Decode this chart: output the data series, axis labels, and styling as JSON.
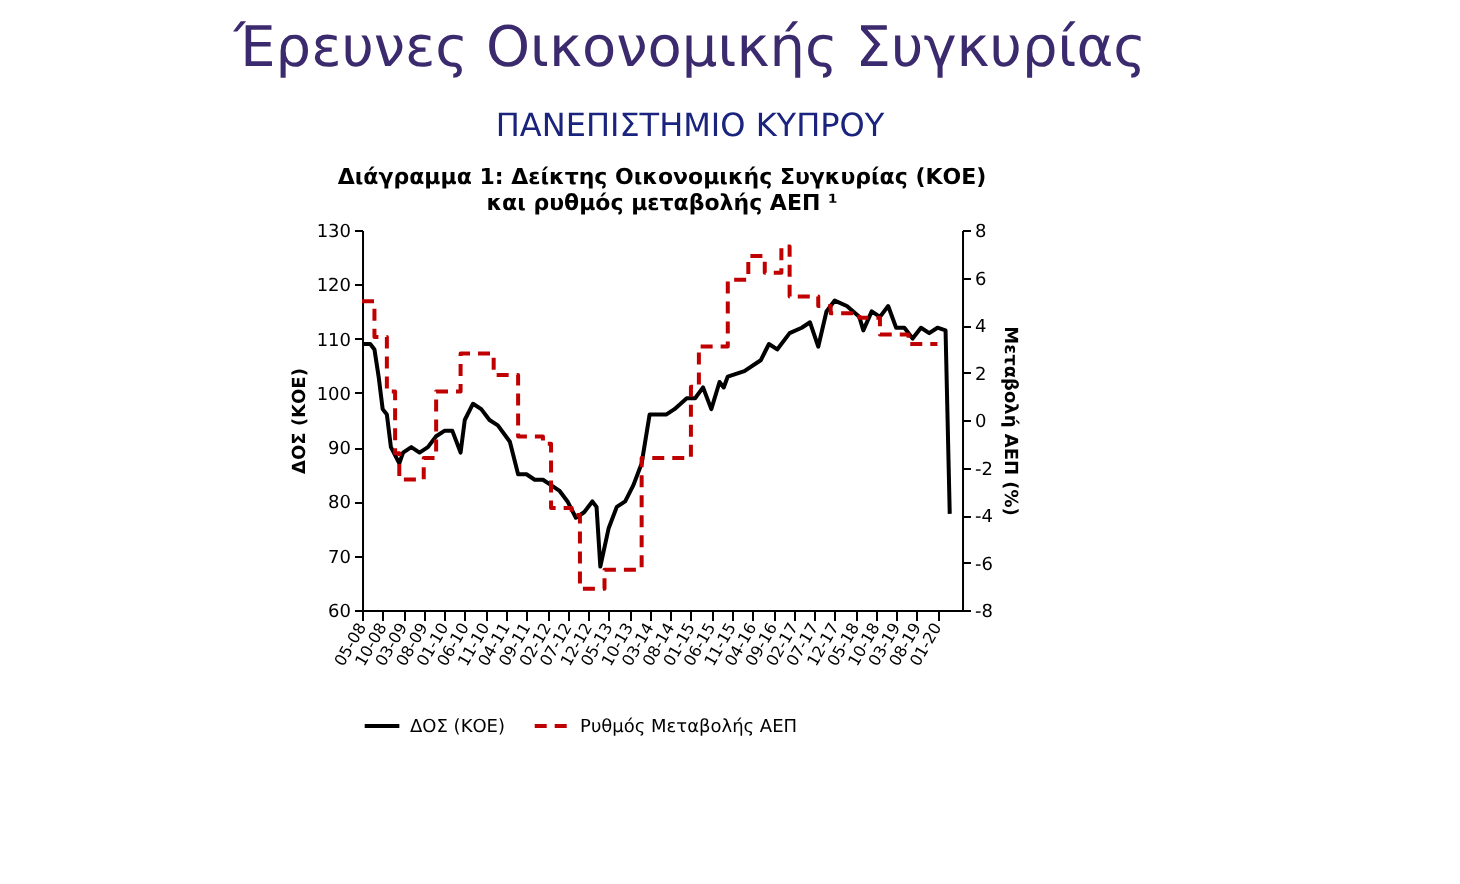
{
  "chart_data": {
    "type": "line",
    "title": [
      "Διάγραμμα 1: Δείκτης Οικονομικής Συγκυρίας (ΚΟΕ)",
      "και ρυθμός μεταβολής ΑΕΠ ¹"
    ],
    "annotations": [
      "Έρευνες Οικονομικής Συγκυρίας",
      "ΠΑΝΕΠΙΣΤΗΜΙΟ ΚΥΠΡΟΥ"
    ],
    "ylabel": "ΔΟΣ (ΚΟΕ)",
    "y2label": "Μεταβολή ΑΕΠ (%)",
    "xlim": [
      "2008-05",
      "2020-07"
    ],
    "xticks": [
      {
        "value": "2008-05",
        "label": "05-08"
      },
      {
        "value": "2008-10",
        "label": "10-08"
      },
      {
        "value": "2009-03",
        "label": "03-09"
      },
      {
        "value": "2009-08",
        "label": "08-09"
      },
      {
        "value": "2010-01",
        "label": "01-10"
      },
      {
        "value": "2010-06",
        "label": "06-10"
      },
      {
        "value": "2010-11",
        "label": "11-10"
      },
      {
        "value": "2011-04",
        "label": "04-11"
      },
      {
        "value": "2011-09",
        "label": "09-11"
      },
      {
        "value": "2012-02",
        "label": "02-12"
      },
      {
        "value": "2012-07",
        "label": "07-12"
      },
      {
        "value": "2012-12",
        "label": "12-12"
      },
      {
        "value": "2013-05",
        "label": "05-13"
      },
      {
        "value": "2013-10",
        "label": "10-13"
      },
      {
        "value": "2014-03",
        "label": "03-14"
      },
      {
        "value": "2014-08",
        "label": "08-14"
      },
      {
        "value": "2015-01",
        "label": "01-15"
      },
      {
        "value": "2015-06",
        "label": "06-15"
      },
      {
        "value": "2015-11",
        "label": "11-15"
      },
      {
        "value": "2016-04",
        "label": "04-16"
      },
      {
        "value": "2016-09",
        "label": "09-16"
      },
      {
        "value": "2017-02",
        "label": "02-17"
      },
      {
        "value": "2017-07",
        "label": "07-17"
      },
      {
        "value": "2017-12",
        "label": "12-17"
      },
      {
        "value": "2018-05",
        "label": "05-18"
      },
      {
        "value": "2018-10",
        "label": "10-18"
      },
      {
        "value": "2019-03",
        "label": "03-19"
      },
      {
        "value": "2019-08",
        "label": "08-19"
      },
      {
        "value": "2020-01",
        "label": "01-20"
      }
    ],
    "ylim": [
      60,
      130
    ],
    "yticks": [
      60,
      70,
      80,
      90,
      100,
      110,
      120,
      130
    ],
    "y2lim": [
      -8,
      8
    ],
    "y2ticks": [
      -8,
      -6,
      -4,
      -2,
      0,
      2,
      4,
      6,
      8
    ],
    "grid": false,
    "legend": "bottom",
    "marker": "none",
    "series": [
      {
        "name": "ΔΟΣ (ΚΟΕ)",
        "color": "#000000",
        "line_style": "solid",
        "x": [
          "2008-05",
          "2008-07",
          "2008-08",
          "2008-09",
          "2008-10",
          "2008-11",
          "2008-12",
          "2009-02",
          "2009-03",
          "2009-05",
          "2009-07",
          "2009-09",
          "2009-11",
          "2010-01",
          "2010-03",
          "2010-05",
          "2010-06",
          "2010-08",
          "2010-10",
          "2010-12",
          "2011-02",
          "2011-05",
          "2011-07",
          "2011-09",
          "2011-11",
          "2012-01",
          "2012-03",
          "2012-05",
          "2012-07",
          "2012-09",
          "2012-11",
          "2013-01",
          "2013-02",
          "2013-03",
          "2013-05",
          "2013-07",
          "2013-09",
          "2013-11",
          "2014-01",
          "2014-03",
          "2014-05",
          "2014-07",
          "2014-09",
          "2014-12",
          "2015-02",
          "2015-04",
          "2015-06",
          "2015-08",
          "2015-09",
          "2015-10",
          "2016-02",
          "2016-06",
          "2016-08",
          "2016-10",
          "2017-01",
          "2017-04",
          "2017-06",
          "2017-08",
          "2017-10",
          "2017-12",
          "2018-03",
          "2018-06",
          "2018-07",
          "2018-09",
          "2018-11",
          "2019-01",
          "2019-03",
          "2019-05",
          "2019-07",
          "2019-09",
          "2019-11",
          "2020-01",
          "2020-03",
          "2020-04"
        ],
        "values": [
          109,
          109,
          108,
          103,
          97,
          96,
          90,
          87,
          89,
          90,
          89,
          90,
          92,
          93,
          93,
          89,
          95,
          98,
          97,
          95,
          94,
          91,
          85,
          85,
          84,
          84,
          83,
          82,
          80,
          77,
          78,
          80,
          79,
          68,
          75,
          79,
          80,
          83,
          87,
          96,
          96,
          96,
          97,
          99,
          99,
          101,
          97,
          102,
          101,
          103,
          104,
          106,
          109,
          108,
          111,
          112,
          113,
          108.5,
          115,
          117,
          116,
          114,
          111.5,
          115,
          114,
          116,
          112,
          112,
          110,
          112,
          111,
          112,
          111.5,
          77.7
        ]
      },
      {
        "name": "Ρυθμός Μεταβολής ΑΕΠ",
        "color": "#c00000",
        "type": "step",
        "line_style": "dashed",
        "axis": "y2",
        "x": [
          "2008-05",
          "2008-08",
          "2008-11",
          "2009-01",
          "2009-02",
          "2009-08",
          "2009-11",
          "2010-05",
          "2011-01",
          "2011-07",
          "2012-01",
          "2012-03",
          "2012-08",
          "2012-10",
          "2013-04",
          "2014-01",
          "2015-01",
          "2015-03",
          "2015-10",
          "2016-03",
          "2016-07",
          "2016-11",
          "2017-01",
          "2017-08",
          "2017-11",
          "2018-06",
          "2018-11",
          "2019-06",
          "2020-01"
        ],
        "values": [
          5.0,
          3.5,
          1.2,
          -1.4,
          -2.5,
          -1.6,
          1.2,
          2.8,
          1.9,
          -0.7,
          -1.0,
          -3.7,
          -4.0,
          -7.1,
          -6.3,
          -1.6,
          1.4,
          3.1,
          5.9,
          6.9,
          6.2,
          7.3,
          5.2,
          4.8,
          4.5,
          4.3,
          3.6,
          3.2,
          3.2
        ]
      }
    ]
  }
}
